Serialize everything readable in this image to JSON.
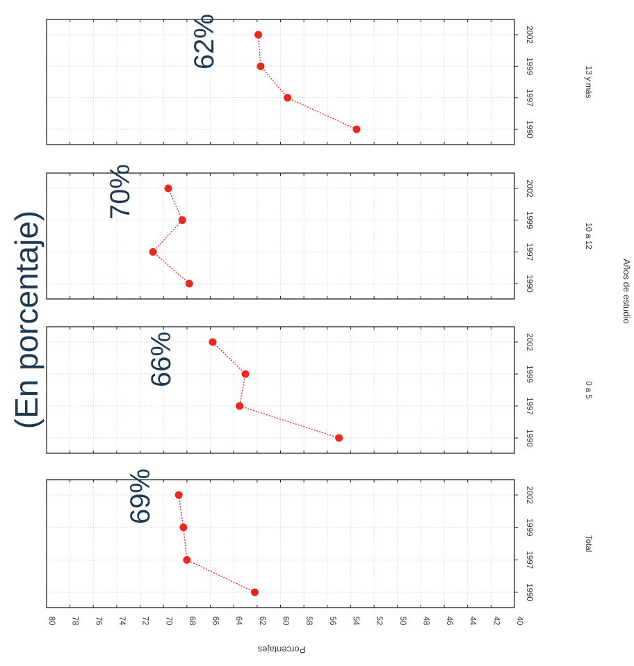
{
  "chart_data": {
    "type": "line",
    "orientation": "rotated-90",
    "title": "(En porcentaje)",
    "xlabel": "Años de estudio",
    "ylabel": "Porcentajes",
    "ylim": [
      40,
      80
    ],
    "y_ticks": [
      "80",
      "78",
      "76",
      "74",
      "72",
      "70",
      "68",
      "66",
      "64",
      "62",
      "60",
      "58",
      "56",
      "54",
      "52",
      "50",
      "48",
      "46",
      "44",
      "42",
      "40"
    ],
    "categories": [
      "1990",
      "1997",
      "1999",
      "2002"
    ],
    "grid": true,
    "colors": {
      "series": "#e8281e",
      "annotation": "#1e3a4f"
    },
    "panels": [
      {
        "name": "Total",
        "values": [
          62.2,
          68.0,
          68.3,
          68.7
        ],
        "annotation": "69%"
      },
      {
        "name": "0 a 5",
        "values": [
          55.0,
          63.5,
          63.0,
          65.8
        ],
        "annotation": "66%"
      },
      {
        "name": "10 a 12",
        "values": [
          67.8,
          70.9,
          68.4,
          69.6
        ],
        "annotation": "70%"
      },
      {
        "name": "13 y más",
        "values": [
          53.5,
          59.4,
          61.7,
          61.9
        ],
        "annotation": "62%"
      }
    ]
  }
}
